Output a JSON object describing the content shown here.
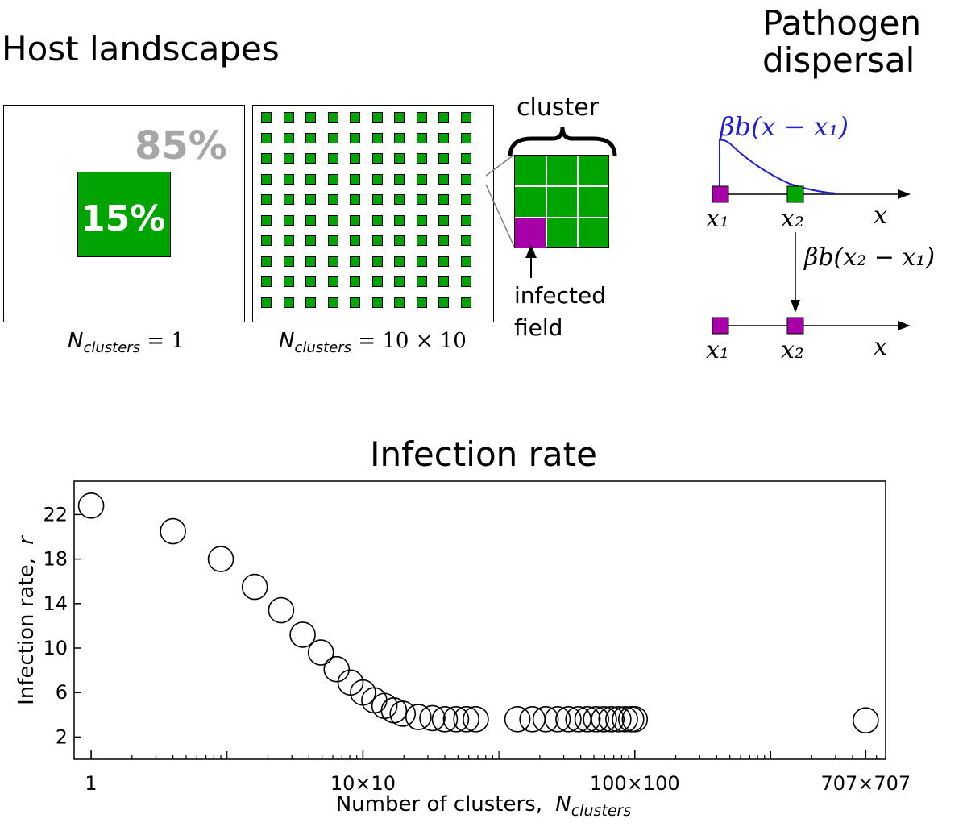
{
  "panels": {
    "host_landscapes": {
      "title": "Host landscapes",
      "percent_background": "85%",
      "percent_host": "15%",
      "label_one_cluster": {
        "prefix": "N",
        "subscript": "clusters",
        "value": "= 1"
      },
      "label_many_clusters": {
        "prefix": "N",
        "subscript": "clusters",
        "value": "= 10 × 10"
      },
      "cluster_label": "cluster",
      "infected_label_line1": "infected",
      "infected_label_line2": "field"
    },
    "pathogen_dispersal": {
      "title_line1": "Pathogen",
      "title_line2": "dispersal",
      "kernel_label": "βb(x − x₁)",
      "transfer_label": "βb(x₂ − x₁)",
      "x1": "x₁",
      "x2": "x₂",
      "x": "x"
    }
  },
  "colors": {
    "host_green": "#00a400",
    "infected_purple": "#a800a8",
    "kernel_blue": "#1f1fd6",
    "percent_grey": "#a6a6a6"
  },
  "chart_data": {
    "type": "scatter",
    "title": "Infection rate",
    "xlabel": "Number of clusters,",
    "xlabel_symbol": "N",
    "xlabel_subscript": "clusters",
    "ylabel": "Infection rate,",
    "ylabel_symbol": "r",
    "x_scale": "log",
    "x_tick_labels": [
      "1",
      "10×10",
      "100×100",
      "707×707"
    ],
    "x_ticks": [
      1,
      100,
      10000,
      499849
    ],
    "xlim": [
      0.75,
      700000
    ],
    "yticks": [
      2,
      6,
      10,
      14,
      18,
      22
    ],
    "ylim": [
      0,
      25
    ],
    "marker": "open-circle",
    "series": [
      {
        "points": [
          {
            "x": 1,
            "y": 22.8
          },
          {
            "x": 4,
            "y": 20.5
          },
          {
            "x": 9,
            "y": 18.0
          },
          {
            "x": 16,
            "y": 15.5
          },
          {
            "x": 25,
            "y": 13.4
          },
          {
            "x": 36,
            "y": 11.2
          },
          {
            "x": 49,
            "y": 9.6
          },
          {
            "x": 64,
            "y": 8.1
          },
          {
            "x": 81,
            "y": 6.9
          },
          {
            "x": 100,
            "y": 6.0
          },
          {
            "x": 121,
            "y": 5.3
          },
          {
            "x": 144,
            "y": 4.8
          },
          {
            "x": 169,
            "y": 4.4
          },
          {
            "x": 196,
            "y": 4.1
          },
          {
            "x": 256,
            "y": 3.8
          },
          {
            "x": 324,
            "y": 3.7
          },
          {
            "x": 400,
            "y": 3.6
          },
          {
            "x": 484,
            "y": 3.6
          },
          {
            "x": 576,
            "y": 3.6
          },
          {
            "x": 676,
            "y": 3.6
          },
          {
            "x": 1369,
            "y": 3.6
          },
          {
            "x": 1764,
            "y": 3.6
          },
          {
            "x": 2209,
            "y": 3.6
          },
          {
            "x": 2704,
            "y": 3.6
          },
          {
            "x": 3249,
            "y": 3.6
          },
          {
            "x": 3844,
            "y": 3.6
          },
          {
            "x": 4489,
            "y": 3.6
          },
          {
            "x": 5184,
            "y": 3.6
          },
          {
            "x": 5929,
            "y": 3.6
          },
          {
            "x": 6724,
            "y": 3.6
          },
          {
            "x": 7569,
            "y": 3.6
          },
          {
            "x": 8464,
            "y": 3.6
          },
          {
            "x": 9409,
            "y": 3.6
          },
          {
            "x": 10000,
            "y": 3.6
          },
          {
            "x": 499849,
            "y": 3.5
          }
        ]
      }
    ]
  }
}
